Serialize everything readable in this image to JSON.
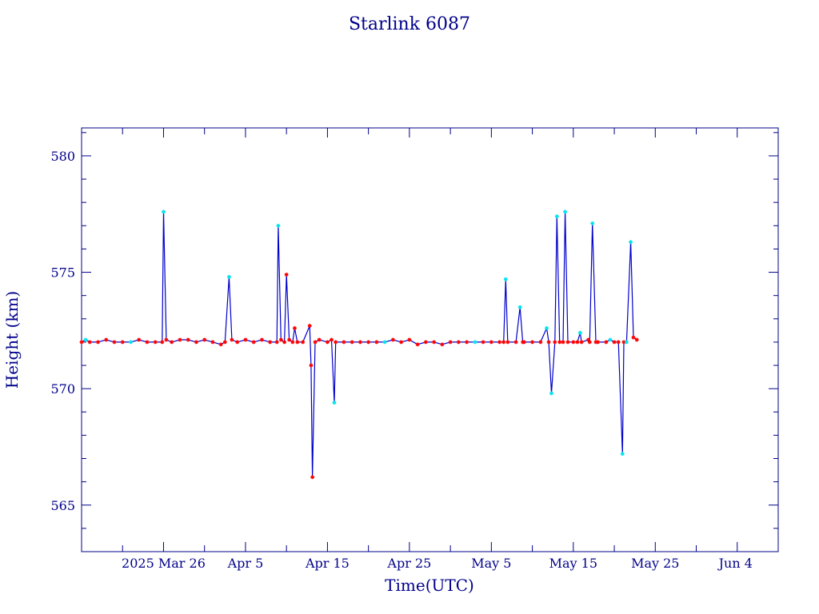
{
  "chart_data": {
    "type": "line",
    "title": "Starlink 6087",
    "xlabel": "Time(UTC)",
    "ylabel": "Height (km)",
    "xlim": [
      "2025-03-16",
      "2025-06-09"
    ],
    "ylim": [
      563,
      581.2
    ],
    "y_ticks_major": [
      565,
      570,
      575,
      580
    ],
    "y_tick_labels": [
      "565",
      "570",
      "575",
      "580"
    ],
    "x_tick_labels": [
      {
        "date": "2025-03-26",
        "label": "2025 Mar 26"
      },
      {
        "date": "2025-04-05",
        "label": "Apr  5"
      },
      {
        "date": "2025-04-15",
        "label": "Apr 15"
      },
      {
        "date": "2025-04-25",
        "label": "Apr 25"
      },
      {
        "date": "2025-05-05",
        "label": "May  5"
      },
      {
        "date": "2025-05-15",
        "label": "May 15"
      },
      {
        "date": "2025-05-25",
        "label": "May 25"
      },
      {
        "date": "2025-06-04",
        "label": "Jun  4"
      }
    ],
    "line_color": "#0000cc",
    "marker_colors": {
      "red": "#ff0000",
      "cyan": "#00e5ee"
    },
    "series": [
      {
        "points": [
          [
            "2025-03-16",
            572.0,
            "red"
          ],
          [
            "2025-03-16T12",
            572.1,
            "cyan"
          ],
          [
            "2025-03-17",
            572.0,
            "red"
          ],
          [
            "2025-03-18",
            572.0,
            "red"
          ],
          [
            "2025-03-19",
            572.1,
            "red"
          ],
          [
            "2025-03-20",
            572.0,
            "red"
          ],
          [
            "2025-03-21",
            572.0,
            "red"
          ],
          [
            "2025-03-22",
            572.0,
            "cyan"
          ],
          [
            "2025-03-23",
            572.1,
            "red"
          ],
          [
            "2025-03-24",
            572.0,
            "red"
          ],
          [
            "2025-03-25",
            572.0,
            "red"
          ],
          [
            "2025-03-25T20",
            572.0,
            "red"
          ],
          [
            "2025-03-26",
            577.6,
            "cyan"
          ],
          [
            "2025-03-26T08",
            572.1,
            "red"
          ],
          [
            "2025-03-27",
            572.0,
            "red"
          ],
          [
            "2025-03-28",
            572.1,
            "red"
          ],
          [
            "2025-03-29",
            572.1,
            "red"
          ],
          [
            "2025-03-30",
            572.0,
            "red"
          ],
          [
            "2025-03-31",
            572.1,
            "red"
          ],
          [
            "2025-04-01",
            572.0,
            "red"
          ],
          [
            "2025-04-02",
            571.9,
            "red"
          ],
          [
            "2025-04-02T12",
            572.0,
            "red"
          ],
          [
            "2025-04-03",
            574.8,
            "cyan"
          ],
          [
            "2025-04-03T08",
            572.1,
            "red"
          ],
          [
            "2025-04-04",
            572.0,
            "red"
          ],
          [
            "2025-04-05",
            572.1,
            "red"
          ],
          [
            "2025-04-06",
            572.0,
            "red"
          ],
          [
            "2025-04-07",
            572.1,
            "red"
          ],
          [
            "2025-04-08",
            572.0,
            "red"
          ],
          [
            "2025-04-08T20",
            572.0,
            "red"
          ],
          [
            "2025-04-09",
            577.0,
            "cyan"
          ],
          [
            "2025-04-09T08",
            572.1,
            "red"
          ],
          [
            "2025-04-09T18",
            572.0,
            "red"
          ],
          [
            "2025-04-10",
            574.9,
            "red"
          ],
          [
            "2025-04-10T08",
            572.1,
            "red"
          ],
          [
            "2025-04-10T18",
            572.0,
            "red"
          ],
          [
            "2025-04-11",
            572.6,
            "red"
          ],
          [
            "2025-04-11T08",
            572.0,
            "red"
          ],
          [
            "2025-04-12",
            572.0,
            "red"
          ],
          [
            "2025-04-12T20",
            572.7,
            "red"
          ],
          [
            "2025-04-13",
            571.0,
            "red"
          ],
          [
            "2025-04-13T04",
            566.2,
            "red"
          ],
          [
            "2025-04-13T12",
            572.0,
            "red"
          ],
          [
            "2025-04-14",
            572.1,
            "red"
          ],
          [
            "2025-04-15",
            572.0,
            "red"
          ],
          [
            "2025-04-15T12",
            572.1,
            "red"
          ],
          [
            "2025-04-15T20",
            569.4,
            "cyan"
          ],
          [
            "2025-04-16",
            572.0,
            "red"
          ],
          [
            "2025-04-17",
            572.0,
            "red"
          ],
          [
            "2025-04-18",
            572.0,
            "red"
          ],
          [
            "2025-04-19",
            572.0,
            "red"
          ],
          [
            "2025-04-20",
            572.0,
            "red"
          ],
          [
            "2025-04-21",
            572.0,
            "red"
          ],
          [
            "2025-04-22",
            572.0,
            "cyan"
          ],
          [
            "2025-04-23",
            572.1,
            "red"
          ],
          [
            "2025-04-24",
            572.0,
            "red"
          ],
          [
            "2025-04-25",
            572.1,
            "red"
          ],
          [
            "2025-04-26",
            571.9,
            "red"
          ],
          [
            "2025-04-27",
            572.0,
            "red"
          ],
          [
            "2025-04-28",
            572.0,
            "red"
          ],
          [
            "2025-04-29",
            571.9,
            "red"
          ],
          [
            "2025-04-30",
            572.0,
            "red"
          ],
          [
            "2025-05-01",
            572.0,
            "red"
          ],
          [
            "2025-05-02",
            572.0,
            "red"
          ],
          [
            "2025-05-03",
            572.0,
            "cyan"
          ],
          [
            "2025-05-04",
            572.0,
            "red"
          ],
          [
            "2025-05-05",
            572.0,
            "red"
          ],
          [
            "2025-05-06",
            572.0,
            "red"
          ],
          [
            "2025-05-06T12",
            572.0,
            "red"
          ],
          [
            "2025-05-06T18",
            574.7,
            "cyan"
          ],
          [
            "2025-05-07",
            572.0,
            "red"
          ],
          [
            "2025-05-08",
            572.0,
            "red"
          ],
          [
            "2025-05-08T12",
            573.5,
            "cyan"
          ],
          [
            "2025-05-08T20",
            572.0,
            "red"
          ],
          [
            "2025-05-09",
            572.0,
            "red"
          ],
          [
            "2025-05-10",
            572.0,
            "red"
          ],
          [
            "2025-05-11",
            572.0,
            "red"
          ],
          [
            "2025-05-11T18",
            572.6,
            "cyan"
          ],
          [
            "2025-05-12",
            572.0,
            "red"
          ],
          [
            "2025-05-12T08",
            569.8,
            "cyan"
          ],
          [
            "2025-05-12T18",
            572.0,
            "red"
          ],
          [
            "2025-05-13",
            577.4,
            "cyan"
          ],
          [
            "2025-05-13T08",
            572.0,
            "red"
          ],
          [
            "2025-05-13T18",
            572.0,
            "red"
          ],
          [
            "2025-05-14",
            577.6,
            "cyan"
          ],
          [
            "2025-05-14T08",
            572.0,
            "red"
          ],
          [
            "2025-05-15",
            572.0,
            "red"
          ],
          [
            "2025-05-15T12",
            572.0,
            "red"
          ],
          [
            "2025-05-15T20",
            572.4,
            "cyan"
          ],
          [
            "2025-05-16",
            572.0,
            "red"
          ],
          [
            "2025-05-16T20",
            572.1,
            "red"
          ],
          [
            "2025-05-17",
            572.0,
            "red"
          ],
          [
            "2025-05-17T08",
            577.1,
            "cyan"
          ],
          [
            "2025-05-17T18",
            572.0,
            "red"
          ],
          [
            "2025-05-18",
            572.0,
            "red"
          ],
          [
            "2025-05-19",
            572.0,
            "red"
          ],
          [
            "2025-05-19T12",
            572.1,
            "cyan"
          ],
          [
            "2025-05-20",
            572.0,
            "red"
          ],
          [
            "2025-05-20T12",
            572.0,
            "red"
          ],
          [
            "2025-05-21",
            567.2,
            "cyan"
          ],
          [
            "2025-05-21T04",
            572.0,
            "red"
          ],
          [
            "2025-05-21T12",
            572.0,
            "cyan"
          ],
          [
            "2025-05-22",
            576.3,
            "cyan"
          ],
          [
            "2025-05-22T08",
            572.2,
            "red"
          ],
          [
            "2025-05-22T18",
            572.1,
            "red"
          ]
        ]
      }
    ]
  }
}
